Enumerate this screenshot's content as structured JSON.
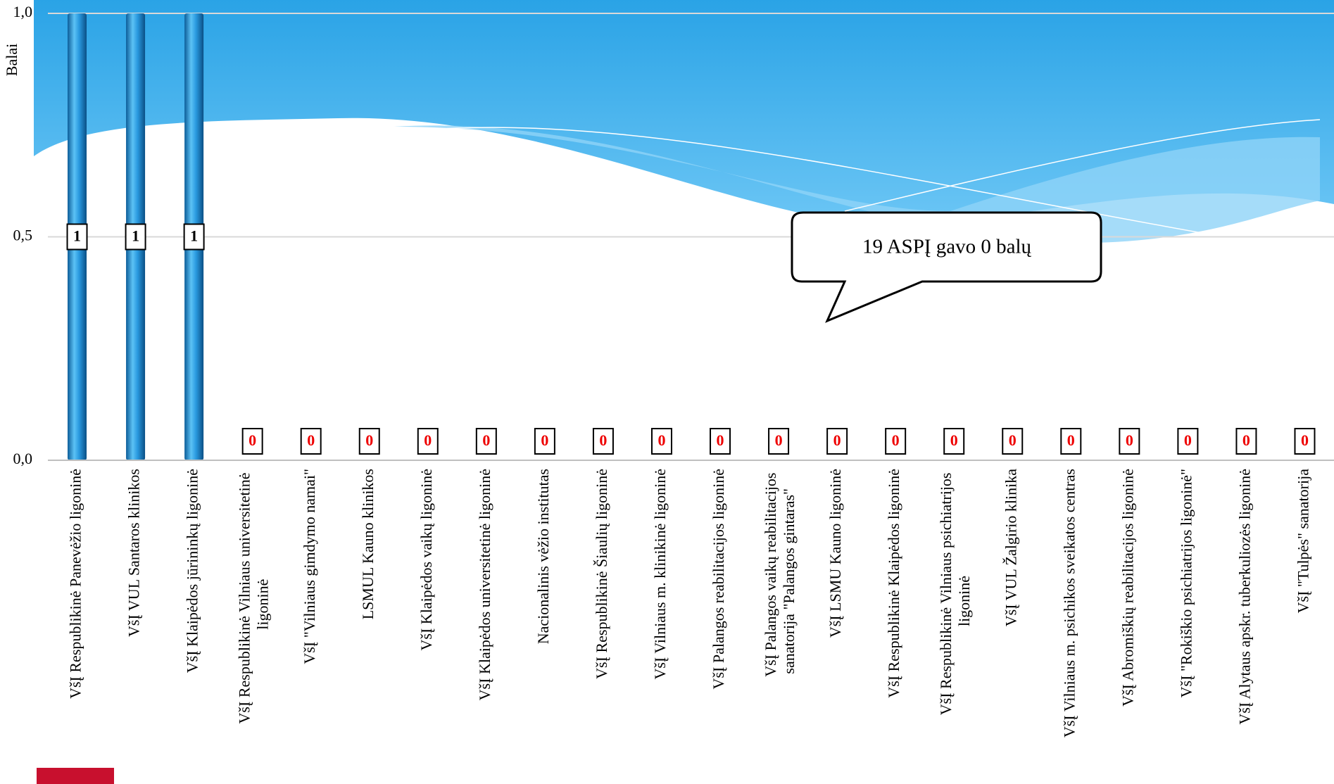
{
  "chart_data": {
    "type": "bar",
    "y_label": "Balai",
    "annotation": "19 ASPĮ gavo 0 balų",
    "categories": [
      "VšĮ Respublikinė Panevėžio ligoninė",
      "VšĮ VUL Santaros klinikos",
      "VšĮ Klaipėdos jūrininkų ligoninė",
      "VšĮ Respublikinė Vilniaus universitetinė ligoninė",
      "VšĮ \"Vilniaus gimdymo namai\"",
      "LSMUL Kauno klinikos",
      "VšĮ Klaipėdos vaikų ligoninė",
      "VšĮ Klaipėdos universitetinė ligoninė",
      "Nacionalinis vėžio institutas",
      "VšĮ Respublikinė Šiaulių ligoninė",
      "VšĮ Vilniaus m. klinikinė ligoninė",
      "VšĮ Palangos reabilitacijos ligoninė",
      "VšĮ Palangos vaikų reabilitacijos sanatorija \"Palangos gintaras\"",
      "VšĮ LSMU Kauno ligoninė",
      "VšĮ Respublikinė Klaipėdos ligoninė",
      "VšĮ Respublikinė Vilniaus psichiatrijos ligoninė",
      "VšĮ VUL Žalgirio klinika",
      "VšĮ Vilniaus m. psichikos sveikatos centras",
      "VšĮ Abromiškių reabilitacijos ligoninė",
      "VšĮ \"Rokiškio psichiatrijos ligoninė\"",
      "VšĮ Alytaus apskr. tuberkuliozės ligoninė",
      "VšĮ \"Tulpės\" sanatorija"
    ],
    "values": [
      1,
      1,
      1,
      0,
      0,
      0,
      0,
      0,
      0,
      0,
      0,
      0,
      0,
      0,
      0,
      0,
      0,
      0,
      0,
      0,
      0,
      0
    ],
    "color": "#1e8fd6",
    "ylim": [
      0,
      1
    ],
    "yticks": [
      {
        "value": 0,
        "label": "0,0"
      },
      {
        "value": 0.5,
        "label": "0,5"
      },
      {
        "value": 1,
        "label": "1,0"
      }
    ],
    "grid": true
  }
}
